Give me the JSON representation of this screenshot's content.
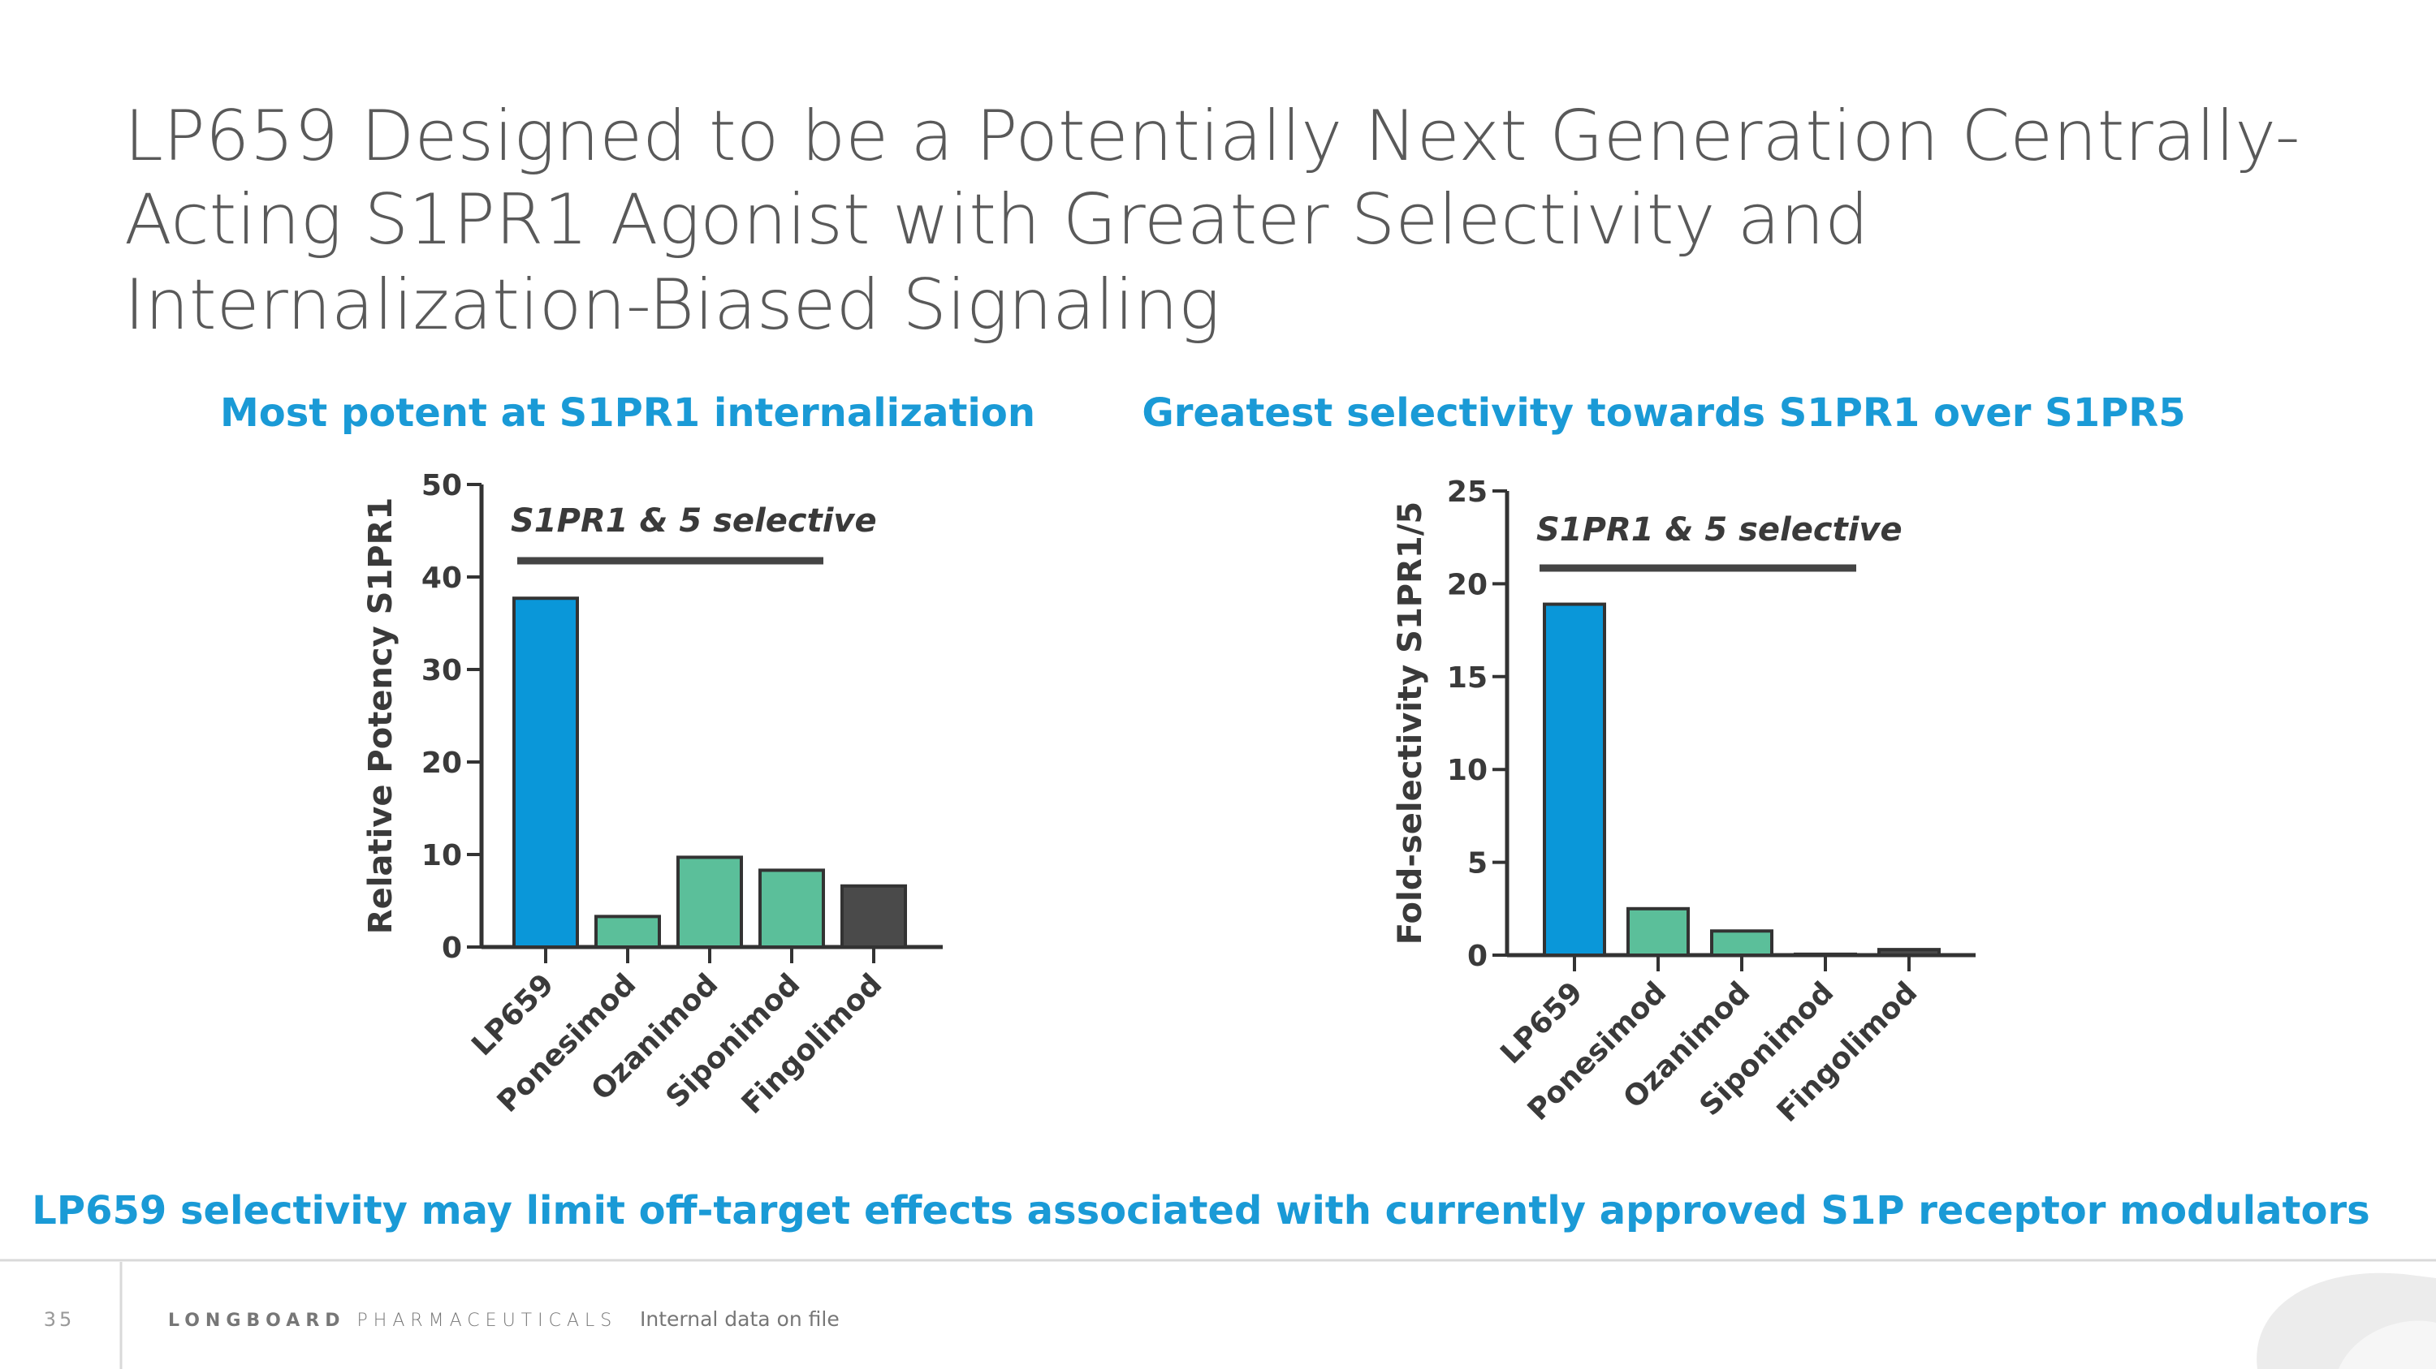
{
  "slide": {
    "title_lines": [
      "LP659 Designed to be a Potentially Next Generation Centrally-",
      "Acting S1PR1 Agonist with Greater Selectivity and",
      "Internalization-Biased Signaling"
    ],
    "conclusion": "LP659 selectivity may limit off-target effects associated with currently approved S1P receptor modulators"
  },
  "footer": {
    "page": "35",
    "brand_bold": "LONGBOARD",
    "brand_light": "PHARMACEUTICALS",
    "note": "Internal data on file"
  },
  "chart_data": [
    {
      "type": "bar",
      "title": "Most potent at S1PR1 internalization",
      "y_label": "Relative Potency S1PR1",
      "annotation": "S1PR1 & 5 selective",
      "categories": [
        "LP659",
        "Ponesimod",
        "Ozanimod",
        "Siponimod",
        "Fingolimod"
      ],
      "values": [
        37.7,
        3.3,
        9.7,
        8.3,
        6.6
      ],
      "colors": [
        "#0a97d9",
        "#5bbf9a",
        "#5bbf9a",
        "#5bbf9a",
        "#4a4a4a"
      ],
      "ylim": [
        0,
        50
      ],
      "yticks": [
        0,
        10,
        20,
        30,
        40,
        50
      ],
      "grid": false
    },
    {
      "type": "bar",
      "title": "Greatest selectivity towards S1PR1 over S1PR5",
      "y_label": "Fold-selectivity S1PR1/5",
      "annotation": "S1PR1 & 5 selective",
      "categories": [
        "LP659",
        "Ponesimod",
        "Ozanimod",
        "Siponimod",
        "Fingolimod"
      ],
      "values": [
        18.9,
        2.5,
        1.3,
        0.05,
        0.3
      ],
      "colors": [
        "#0a97d9",
        "#5bbf9a",
        "#5bbf9a",
        "#5bbf9a",
        "#4a4a4a"
      ],
      "ylim": [
        0,
        25
      ],
      "yticks": [
        0,
        5,
        10,
        15,
        20,
        25
      ],
      "grid": false
    }
  ]
}
